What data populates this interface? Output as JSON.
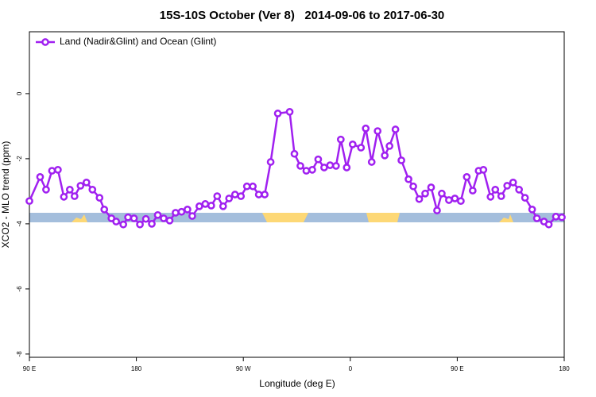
{
  "chart_data": {
    "type": "line",
    "title": "15S-10S October (Ver 8)   2014-09-06 to 2017-06-30",
    "xlabel": "Longitude (deg E)",
    "ylabel": "XCO2 - MLO trend (ppm)",
    "legend": "top-left",
    "xlim": [
      90,
      540
    ],
    "ylim": [
      -8.1,
      1.9
    ],
    "xticks": [
      {
        "value": 90,
        "label": "90 E"
      },
      {
        "value": 180,
        "label": "180"
      },
      {
        "value": 270,
        "label": "90 W"
      },
      {
        "value": 360,
        "label": "0"
      },
      {
        "value": 450,
        "label": "90 E"
      },
      {
        "value": 540,
        "label": "180"
      }
    ],
    "yticks": [
      -8,
      -6,
      -4,
      -2,
      0
    ],
    "x": [
      90,
      99,
      104,
      109,
      114,
      119,
      124,
      128,
      133,
      138,
      143,
      149,
      153,
      159,
      163,
      169,
      173,
      178,
      183,
      188,
      193,
      198,
      203,
      208,
      213,
      218,
      223,
      227,
      233,
      238,
      243,
      248,
      253,
      258,
      263,
      268,
      273,
      278,
      283,
      288,
      293,
      299,
      309,
      313,
      318,
      323,
      328,
      333,
      338,
      343,
      348,
      352,
      357,
      362,
      369,
      373,
      378,
      383,
      389,
      393,
      398,
      403,
      409,
      413,
      418,
      423,
      428,
      433,
      437,
      443,
      448,
      453,
      458,
      463,
      468,
      472,
      478,
      482,
      487,
      492,
      497,
      502,
      507,
      513,
      517,
      523,
      527,
      533,
      538
    ],
    "series": [
      {
        "name": "Land (Nadir&Glint) and Ocean (Glint)",
        "color": "#a020f0",
        "values": [
          -3.3,
          -2.56,
          -2.95,
          -2.37,
          -2.34,
          -3.17,
          -2.95,
          -3.15,
          -2.83,
          -2.73,
          -2.95,
          -3.2,
          -3.56,
          -3.83,
          -3.93,
          -4.02,
          -3.8,
          -3.83,
          -4.02,
          -3.85,
          -4.0,
          -3.73,
          -3.83,
          -3.9,
          -3.66,
          -3.63,
          -3.56,
          -3.76,
          -3.46,
          -3.39,
          -3.44,
          -3.15,
          -3.46,
          -3.22,
          -3.1,
          -3.15,
          -2.85,
          -2.85,
          -3.1,
          -3.1,
          -2.1,
          -0.61,
          -0.56,
          -1.85,
          -2.22,
          -2.37,
          -2.34,
          -2.02,
          -2.27,
          -2.2,
          -2.22,
          -1.41,
          -2.27,
          -1.56,
          -1.66,
          -1.07,
          -2.1,
          -1.15,
          -1.9,
          -1.61,
          -1.1,
          -2.05,
          -2.63,
          -2.85,
          -3.24,
          -3.07,
          -2.88,
          -3.59,
          -3.07,
          -3.27,
          -3.22,
          -3.3,
          -2.56,
          -2.98,
          -2.37,
          -2.34,
          -3.17,
          -2.95,
          -3.15,
          -2.83,
          -2.73,
          -2.95,
          -3.2,
          -3.56,
          -3.83,
          -3.93,
          -4.02,
          -3.78,
          -3.8
        ]
      }
    ]
  }
}
